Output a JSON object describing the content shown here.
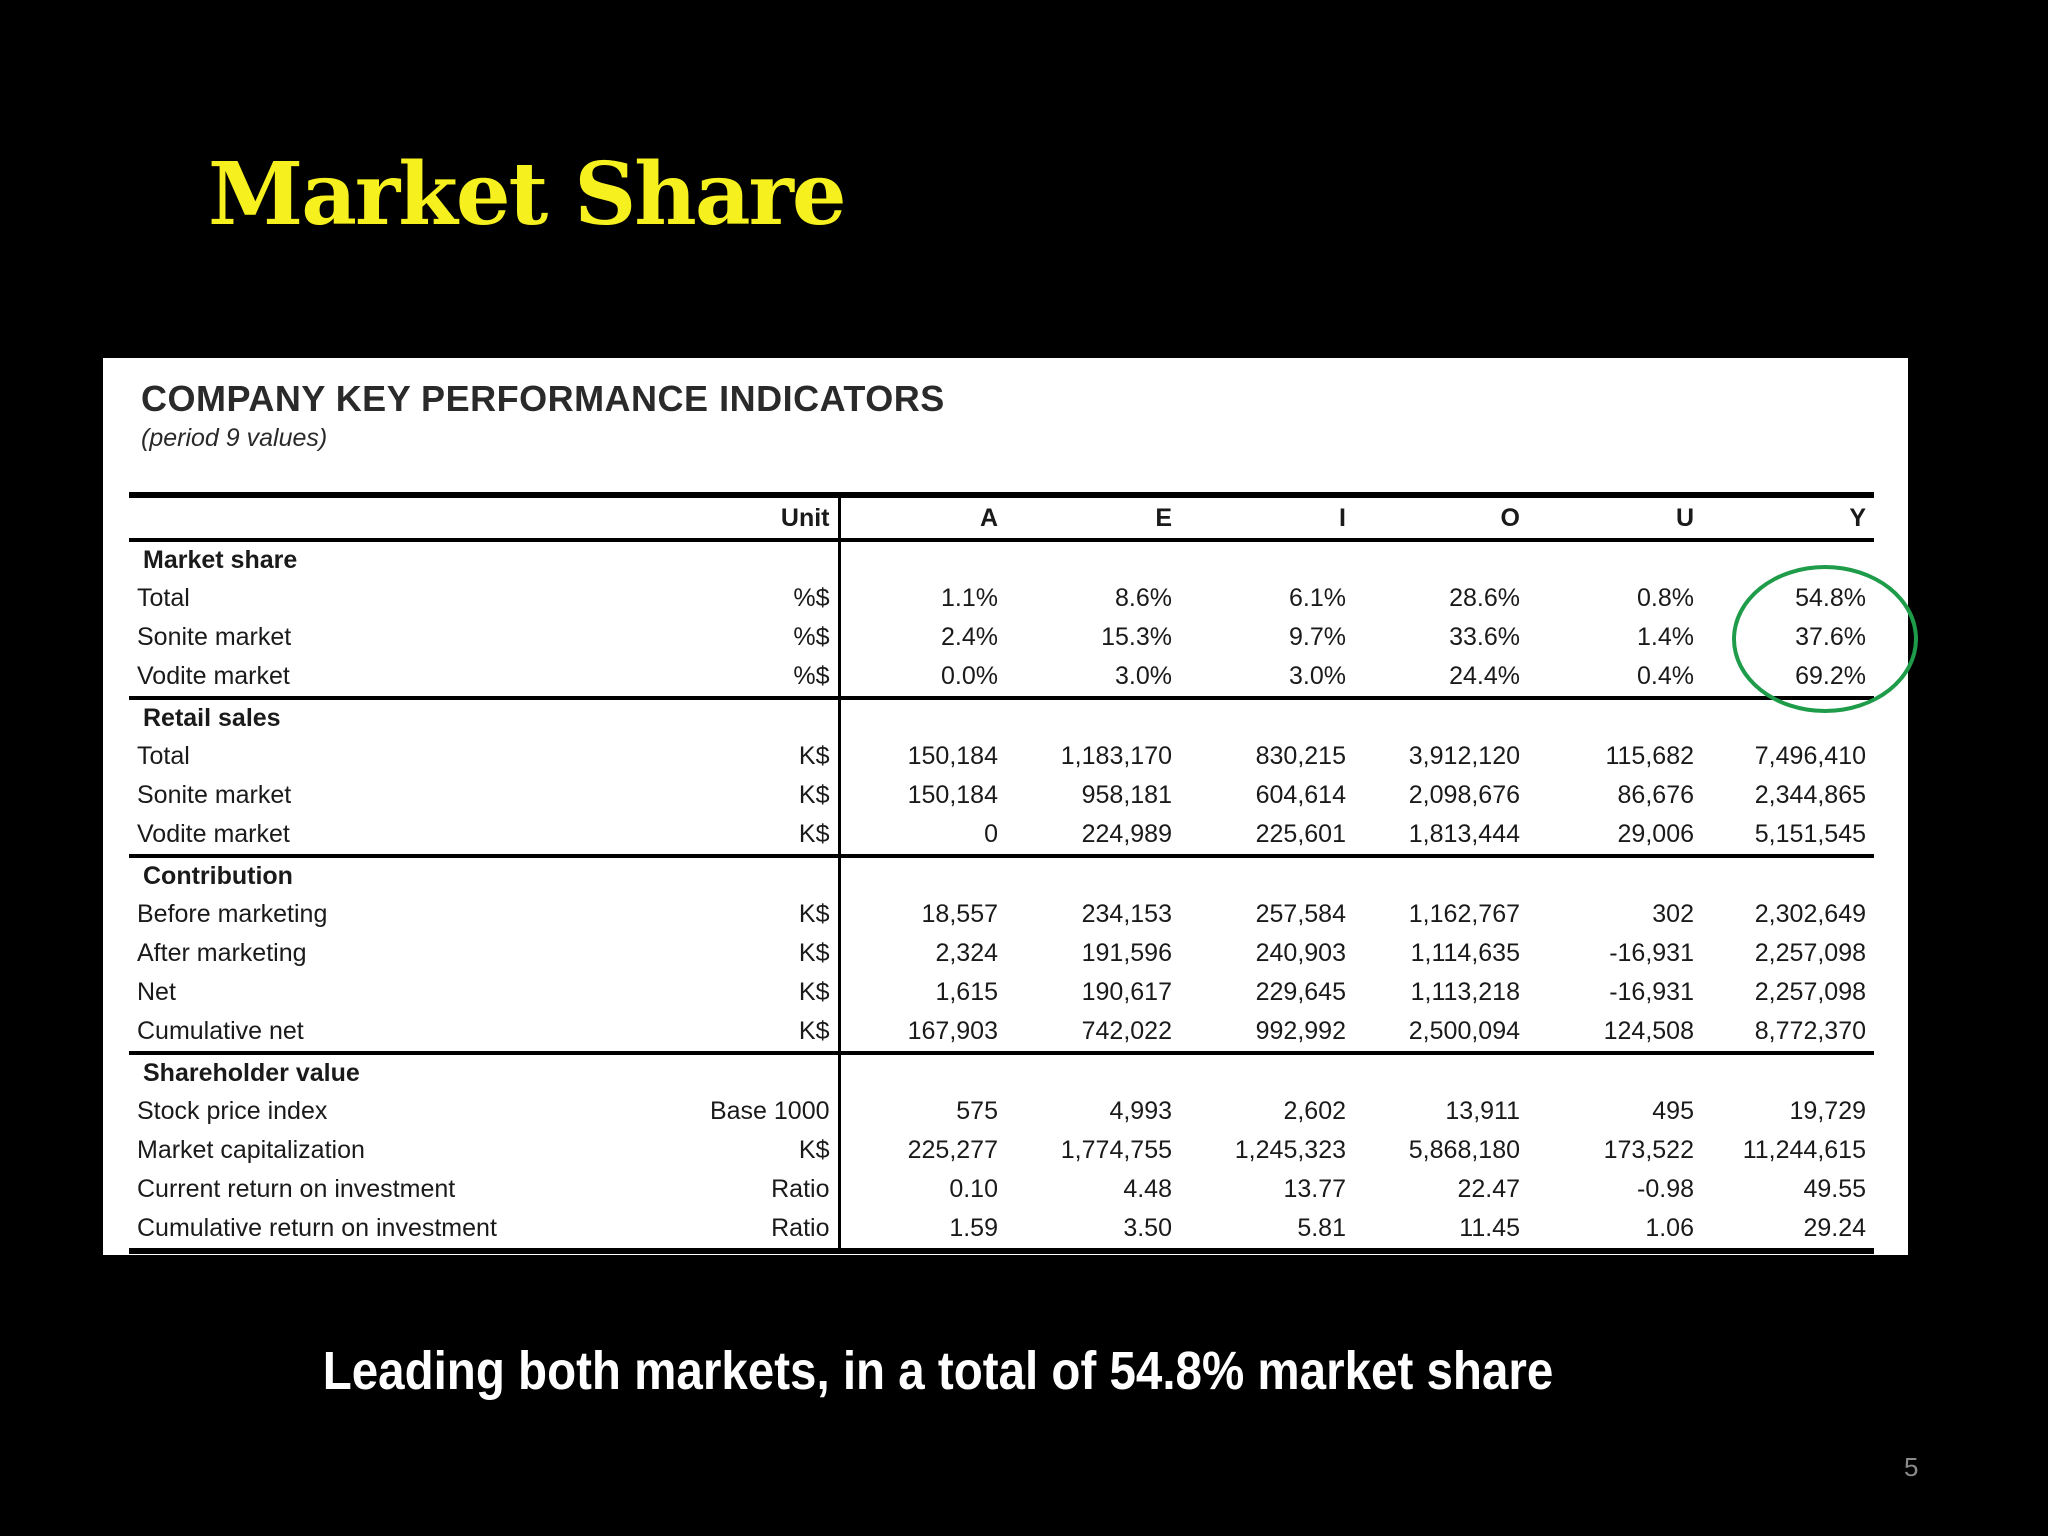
{
  "slide": {
    "title": "Market Share",
    "caption": "Leading both markets, in a total of 54.8% market share",
    "page_number": "5"
  },
  "panel": {
    "title": "COMPANY KEY PERFORMANCE INDICATORS",
    "subtitle": "(period 9 values)"
  },
  "table": {
    "columns": [
      "",
      "Unit",
      "A",
      "E",
      "I",
      "O",
      "U",
      "Y"
    ],
    "sections": [
      {
        "name": "Market share",
        "rows": [
          {
            "label": "Total",
            "unit": "%$",
            "values": [
              "1.1%",
              "8.6%",
              "6.1%",
              "28.6%",
              "0.8%",
              "54.8%"
            ]
          },
          {
            "label": "Sonite market",
            "unit": "%$",
            "values": [
              "2.4%",
              "15.3%",
              "9.7%",
              "33.6%",
              "1.4%",
              "37.6%"
            ]
          },
          {
            "label": "Vodite market",
            "unit": "%$",
            "values": [
              "0.0%",
              "3.0%",
              "3.0%",
              "24.4%",
              "0.4%",
              "69.2%"
            ]
          }
        ]
      },
      {
        "name": "Retail sales",
        "rows": [
          {
            "label": "Total",
            "unit": "K$",
            "values": [
              "150,184",
              "1,183,170",
              "830,215",
              "3,912,120",
              "115,682",
              "7,496,410"
            ]
          },
          {
            "label": "Sonite market",
            "unit": "K$",
            "values": [
              "150,184",
              "958,181",
              "604,614",
              "2,098,676",
              "86,676",
              "2,344,865"
            ]
          },
          {
            "label": "Vodite market",
            "unit": "K$",
            "values": [
              "0",
              "224,989",
              "225,601",
              "1,813,444",
              "29,006",
              "5,151,545"
            ]
          }
        ]
      },
      {
        "name": "Contribution",
        "rows": [
          {
            "label": "Before marketing",
            "unit": "K$",
            "values": [
              "18,557",
              "234,153",
              "257,584",
              "1,162,767",
              "302",
              "2,302,649"
            ]
          },
          {
            "label": "After marketing",
            "unit": "K$",
            "values": [
              "2,324",
              "191,596",
              "240,903",
              "1,114,635",
              "-16,931",
              "2,257,098"
            ]
          },
          {
            "label": "Net",
            "unit": "K$",
            "values": [
              "1,615",
              "190,617",
              "229,645",
              "1,113,218",
              "-16,931",
              "2,257,098"
            ]
          },
          {
            "label": "Cumulative net",
            "unit": "K$",
            "values": [
              "167,903",
              "742,022",
              "992,992",
              "2,500,094",
              "124,508",
              "8,772,370"
            ]
          }
        ]
      },
      {
        "name": "Shareholder value",
        "rows": [
          {
            "label": "Stock price index",
            "unit": "Base 1000",
            "values": [
              "575",
              "4,993",
              "2,602",
              "13,911",
              "495",
              "19,729"
            ]
          },
          {
            "label": "Market capitalization",
            "unit": "K$",
            "values": [
              "225,277",
              "1,774,755",
              "1,245,323",
              "5,868,180",
              "173,522",
              "11,244,615"
            ]
          },
          {
            "label": "Current return on investment",
            "unit": "Ratio",
            "values": [
              "0.10",
              "4.48",
              "13.77",
              "22.47",
              "-0.98",
              "49.55"
            ]
          },
          {
            "label": "Cumulative return on investment",
            "unit": "Ratio",
            "values": [
              "1.59",
              "3.50",
              "5.81",
              "11.45",
              "1.06",
              "29.24"
            ]
          }
        ]
      }
    ]
  },
  "colors": {
    "title": "#f5f01e",
    "background": "#000000",
    "highlight_ring": "#1e9c4a"
  }
}
